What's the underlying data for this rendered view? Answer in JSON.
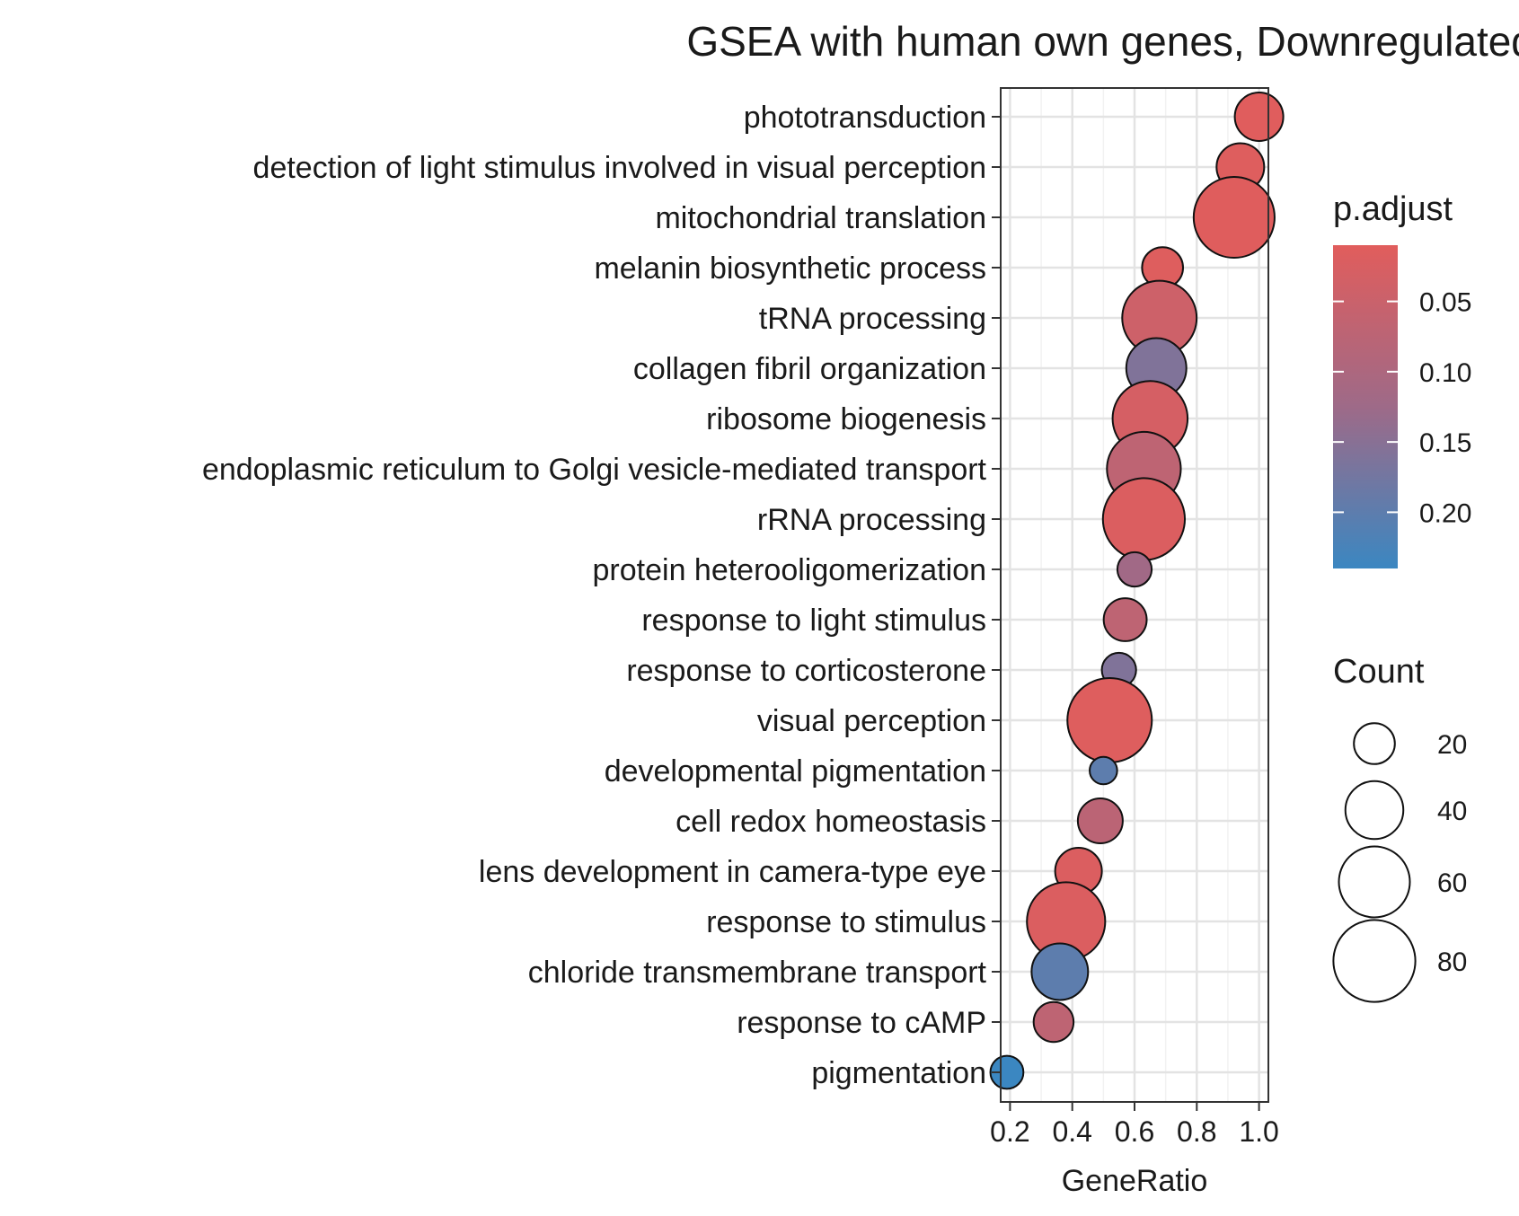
{
  "chart_data": {
    "type": "scatter",
    "title": "GSEA with human own genes, Downregulated terms",
    "xlabel": "GeneRatio",
    "ylabel": "",
    "xlim": [
      0.17,
      1.03
    ],
    "xticks": [
      0.2,
      0.4,
      0.6,
      0.8,
      1.0
    ],
    "xtick_labels": [
      "0.2",
      "0.4",
      "0.6",
      "0.8",
      "1.0"
    ],
    "grid": true,
    "legend_position": "right",
    "color_legend": {
      "title": "p.adjust",
      "range": [
        0.01,
        0.24
      ],
      "low_color": "#e15d5c",
      "mid_color": "#9e6a88",
      "high_color": "#3b87c1",
      "ticks": [
        0.05,
        0.1,
        0.15,
        0.2
      ],
      "tick_labels": [
        "0.05",
        "0.10",
        "0.15",
        "0.20"
      ]
    },
    "size_legend": {
      "title": "Count",
      "values": [
        20,
        40,
        60,
        80
      ],
      "labels": [
        "20",
        "40",
        "60",
        "80"
      ]
    },
    "points": [
      {
        "term": "phototransduction",
        "gene_ratio": 1.0,
        "p_adjust": 0.012,
        "count": 28
      },
      {
        "term": "detection of light stimulus involved in visual perception",
        "gene_ratio": 0.94,
        "p_adjust": 0.015,
        "count": 27
      },
      {
        "term": "mitochondrial translation",
        "gene_ratio": 0.92,
        "p_adjust": 0.013,
        "count": 78
      },
      {
        "term": "melanin biosynthetic process",
        "gene_ratio": 0.69,
        "p_adjust": 0.016,
        "count": 20
      },
      {
        "term": "tRNA processing",
        "gene_ratio": 0.68,
        "p_adjust": 0.045,
        "count": 66
      },
      {
        "term": "collagen fibril organization",
        "gene_ratio": 0.67,
        "p_adjust": 0.16,
        "count": 43
      },
      {
        "term": "ribosome biogenesis",
        "gene_ratio": 0.65,
        "p_adjust": 0.03,
        "count": 67
      },
      {
        "term": "endoplasmic reticulum to Golgi vesicle-mediated transport",
        "gene_ratio": 0.63,
        "p_adjust": 0.07,
        "count": 65
      },
      {
        "term": "rRNA processing",
        "gene_ratio": 0.63,
        "p_adjust": 0.02,
        "count": 80
      },
      {
        "term": "protein heterooligomerization",
        "gene_ratio": 0.6,
        "p_adjust": 0.12,
        "count": 14
      },
      {
        "term": "response to light stimulus",
        "gene_ratio": 0.57,
        "p_adjust": 0.07,
        "count": 22
      },
      {
        "term": "response to corticosterone",
        "gene_ratio": 0.55,
        "p_adjust": 0.16,
        "count": 14
      },
      {
        "term": "visual perception",
        "gene_ratio": 0.52,
        "p_adjust": 0.015,
        "count": 85
      },
      {
        "term": "developmental pigmentation",
        "gene_ratio": 0.5,
        "p_adjust": 0.2,
        "count": 9
      },
      {
        "term": "cell redox homeostasis",
        "gene_ratio": 0.49,
        "p_adjust": 0.075,
        "count": 24
      },
      {
        "term": "lens development in camera-type eye",
        "gene_ratio": 0.42,
        "p_adjust": 0.02,
        "count": 26
      },
      {
        "term": "response to stimulus",
        "gene_ratio": 0.38,
        "p_adjust": 0.02,
        "count": 73
      },
      {
        "term": "chloride transmembrane transport",
        "gene_ratio": 0.36,
        "p_adjust": 0.2,
        "count": 38
      },
      {
        "term": "response to cAMP",
        "gene_ratio": 0.34,
        "p_adjust": 0.07,
        "count": 19
      },
      {
        "term": "pigmentation",
        "gene_ratio": 0.19,
        "p_adjust": 0.24,
        "count": 13
      }
    ]
  }
}
